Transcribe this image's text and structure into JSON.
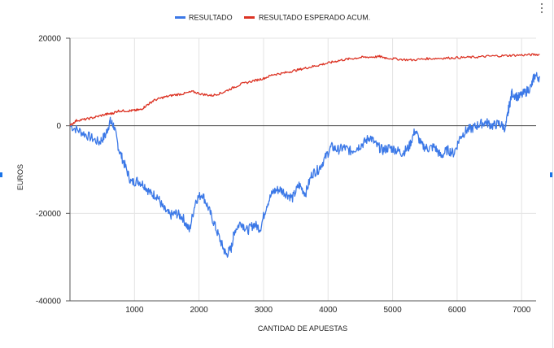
{
  "chart_data": {
    "type": "line",
    "xlabel": "CANTIDAD DE APUESTAS",
    "ylabel": "EUROS",
    "xlim": [
      0,
      7300
    ],
    "ylim": [
      -40000,
      20000
    ],
    "x_ticks": [
      "1000",
      "2000",
      "3000",
      "4000",
      "5000",
      "6000",
      "7000"
    ],
    "y_ticks": [
      "20000",
      "0",
      "-20000",
      "-40000"
    ],
    "grid": true,
    "legend_position": "top",
    "series": [
      {
        "name": "RESULTADO",
        "color": "#3b78e7",
        "points": [
          [
            0,
            0
          ],
          [
            150,
            -1200
          ],
          [
            300,
            -2500
          ],
          [
            450,
            -3800
          ],
          [
            550,
            -2200
          ],
          [
            620,
            1000
          ],
          [
            680,
            0
          ],
          [
            760,
            -5500
          ],
          [
            850,
            -9000
          ],
          [
            950,
            -13000
          ],
          [
            1050,
            -12500
          ],
          [
            1150,
            -13500
          ],
          [
            1250,
            -15500
          ],
          [
            1350,
            -16000
          ],
          [
            1450,
            -19000
          ],
          [
            1550,
            -20500
          ],
          [
            1650,
            -20000
          ],
          [
            1750,
            -21000
          ],
          [
            1850,
            -24000
          ],
          [
            1950,
            -17000
          ],
          [
            2050,
            -15500
          ],
          [
            2150,
            -19000
          ],
          [
            2250,
            -23000
          ],
          [
            2350,
            -27000
          ],
          [
            2420,
            -29500
          ],
          [
            2500,
            -28000
          ],
          [
            2550,
            -24000
          ],
          [
            2650,
            -22000
          ],
          [
            2750,
            -24000
          ],
          [
            2850,
            -22500
          ],
          [
            2950,
            -23500
          ],
          [
            3050,
            -18000
          ],
          [
            3150,
            -15000
          ],
          [
            3250,
            -14500
          ],
          [
            3350,
            -15500
          ],
          [
            3450,
            -16500
          ],
          [
            3550,
            -13500
          ],
          [
            3650,
            -15500
          ],
          [
            3750,
            -11000
          ],
          [
            3850,
            -10000
          ],
          [
            3950,
            -7500
          ],
          [
            4050,
            -4800
          ],
          [
            4150,
            -5500
          ],
          [
            4250,
            -5000
          ],
          [
            4350,
            -5800
          ],
          [
            4450,
            -5000
          ],
          [
            4550,
            -4000
          ],
          [
            4650,
            -2500
          ],
          [
            4750,
            -4500
          ],
          [
            4850,
            -5600
          ],
          [
            4950,
            -5000
          ],
          [
            5050,
            -5500
          ],
          [
            5150,
            -6200
          ],
          [
            5250,
            -5000
          ],
          [
            5350,
            -1000
          ],
          [
            5450,
            -4500
          ],
          [
            5550,
            -5200
          ],
          [
            5650,
            -4800
          ],
          [
            5750,
            -7000
          ],
          [
            5850,
            -5500
          ],
          [
            5950,
            -6300
          ],
          [
            6050,
            -2500
          ],
          [
            6150,
            -1000
          ],
          [
            6250,
            -500
          ],
          [
            6350,
            400
          ],
          [
            6450,
            800
          ],
          [
            6550,
            0
          ],
          [
            6650,
            500
          ],
          [
            6750,
            -500
          ],
          [
            6800,
            4000
          ],
          [
            6850,
            7500
          ],
          [
            6950,
            6500
          ],
          [
            7050,
            7500
          ],
          [
            7150,
            9000
          ],
          [
            7200,
            11500
          ],
          [
            7280,
            11000
          ]
        ]
      },
      {
        "name": "RESULTADO ESPERADO ACUM.",
        "color": "#dc3324",
        "points": [
          [
            0,
            0
          ],
          [
            100,
            1200
          ],
          [
            250,
            1500
          ],
          [
            400,
            2000
          ],
          [
            550,
            2600
          ],
          [
            650,
            2800
          ],
          [
            750,
            3400
          ],
          [
            900,
            3400
          ],
          [
            1000,
            3500
          ],
          [
            1100,
            3700
          ],
          [
            1200,
            4800
          ],
          [
            1300,
            5800
          ],
          [
            1450,
            6500
          ],
          [
            1600,
            7000
          ],
          [
            1750,
            7300
          ],
          [
            1900,
            7800
          ],
          [
            2050,
            7200
          ],
          [
            2200,
            6900
          ],
          [
            2350,
            7500
          ],
          [
            2500,
            8500
          ],
          [
            2650,
            9500
          ],
          [
            2850,
            10300
          ],
          [
            3000,
            10800
          ],
          [
            3150,
            11700
          ],
          [
            3300,
            12000
          ],
          [
            3450,
            12500
          ],
          [
            3600,
            13000
          ],
          [
            3750,
            13500
          ],
          [
            3900,
            14000
          ],
          [
            4050,
            14500
          ],
          [
            4200,
            15000
          ],
          [
            4350,
            15300
          ],
          [
            4500,
            15600
          ],
          [
            4650,
            15700
          ],
          [
            4800,
            15800
          ],
          [
            4900,
            15500
          ],
          [
            5100,
            15200
          ],
          [
            5300,
            15000
          ],
          [
            5500,
            15300
          ],
          [
            5700,
            15400
          ],
          [
            5900,
            15500
          ],
          [
            6100,
            15600
          ],
          [
            6300,
            15700
          ],
          [
            6500,
            15900
          ],
          [
            6700,
            16000
          ],
          [
            6900,
            16100
          ],
          [
            7100,
            16200
          ],
          [
            7280,
            16300
          ]
        ]
      }
    ]
  }
}
